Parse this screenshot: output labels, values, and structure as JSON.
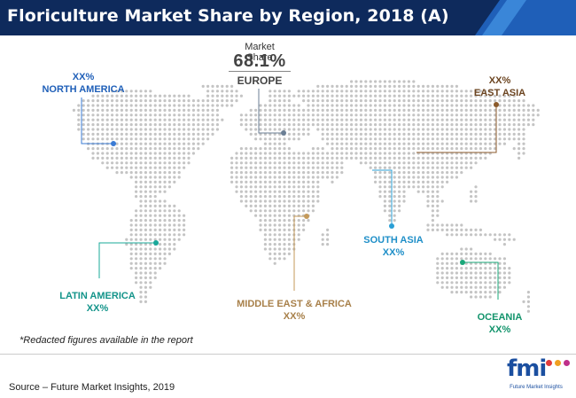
{
  "title": "Floriculture Market Share by Region, 2018 (A)",
  "highlight": {
    "label": "Market Share",
    "value": "68.1%",
    "region": "EUROPE"
  },
  "regions": [
    {
      "id": "north-america",
      "name": "NORTH AMERICA",
      "value": "XX%",
      "color": "#3a7bd5"
    },
    {
      "id": "europe",
      "name": "EUROPE",
      "value": "68.1%",
      "color": "#6b7f95"
    },
    {
      "id": "east-asia",
      "name": "EAST ASIA",
      "value": "XX%",
      "color": "#8b5a2b"
    },
    {
      "id": "south-asia",
      "name": "SOUTH ASIA",
      "value": "XX%",
      "color": "#2a9fd6"
    },
    {
      "id": "latin-america",
      "name": "LATIN AMERICA",
      "value": "XX%",
      "color": "#1aa89a"
    },
    {
      "id": "middle-east-africa",
      "name": "MIDDLE EAST & AFRICA",
      "value": "XX%",
      "color": "#c49a5a"
    },
    {
      "id": "oceania",
      "name": "OCEANIA",
      "value": "XX%",
      "color": "#1aa87a"
    }
  ],
  "note": "*Redacted figures available in the report",
  "source": "Source – Future Market Insights, 2019",
  "logo": {
    "text": "fmi",
    "subtitle": "Future Market Insights"
  },
  "colors": {
    "title_bg": "#0e2a5c",
    "title_accent": "#1f5fb8",
    "map_dots": "#c4c4c4"
  }
}
